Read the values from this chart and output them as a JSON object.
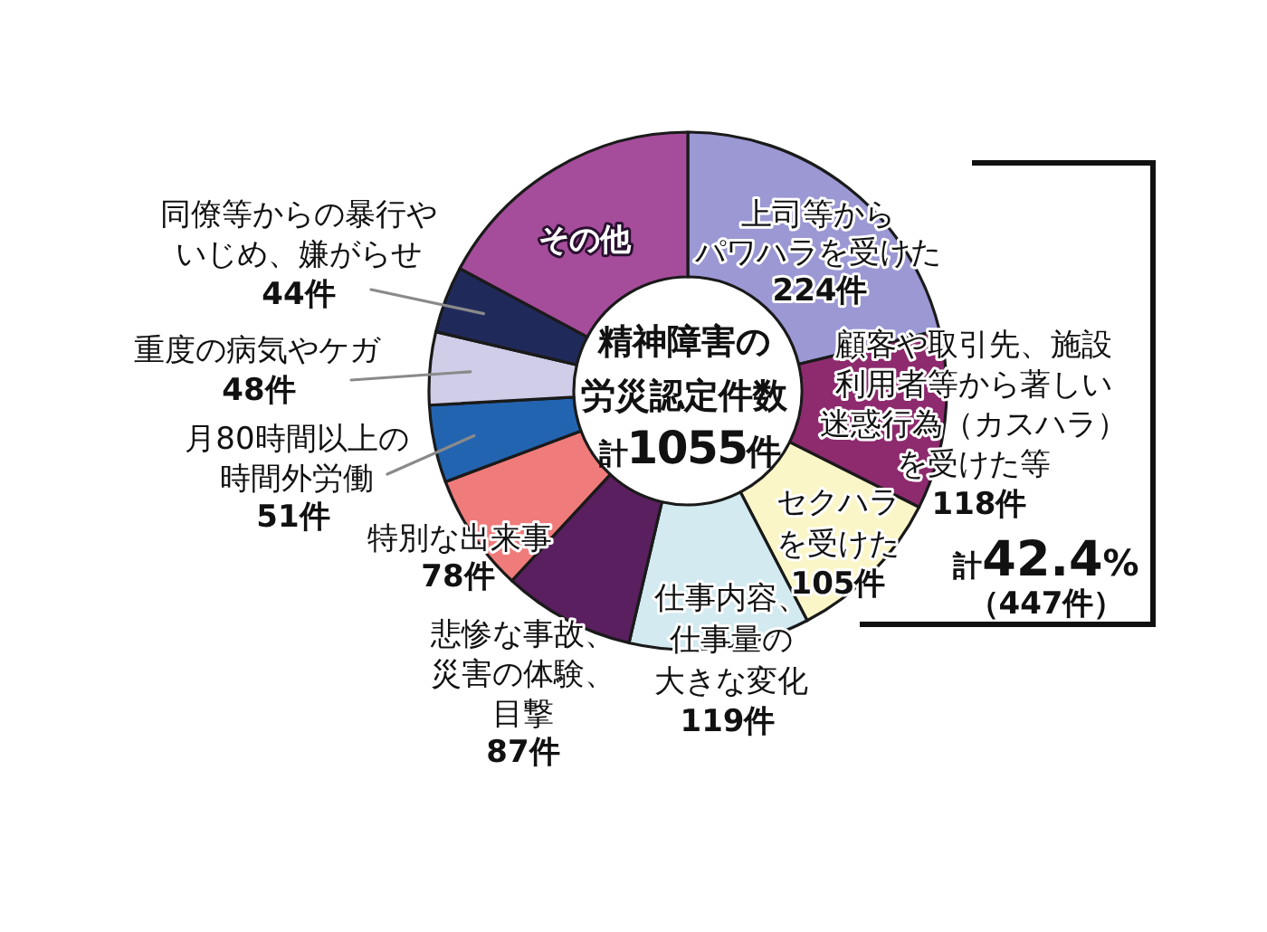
{
  "chart_data": {
    "type": "donut",
    "title": "精神障害の労災認定件数",
    "categories": [
      "上司等からパワハラを受けた",
      "顧客や取引先、施設利用者等から著しい迷惑行為（カスハラ）を受けた等",
      "セクハラを受けた",
      "仕事内容、仕事量の大きな変化",
      "悲惨な事故、災害の体験、目撃",
      "特別な出来事",
      "月80時間以上の時間外労働",
      "重度の病気やケガ",
      "同僚等からの暴行やいじめ、嫌がらせ",
      "その他"
    ],
    "values": [
      224,
      118,
      105,
      119,
      87,
      78,
      51,
      48,
      44,
      181
    ],
    "colors": [
      "#9b98d4",
      "#8e2a6e",
      "#fbf6c8",
      "#d2eaf0",
      "#5a1f5e",
      "#ef7b7a",
      "#2364b0",
      "#d0cde8",
      "#202a5a",
      "#a54c9a"
    ],
    "value_labels": [
      "224件",
      "118件",
      "105件",
      "119件",
      "87件",
      "78件",
      "51件",
      "48件",
      "44件",
      null
    ],
    "annotations": [
      "計1055件",
      "計42.4%（447件）"
    ]
  }
}
